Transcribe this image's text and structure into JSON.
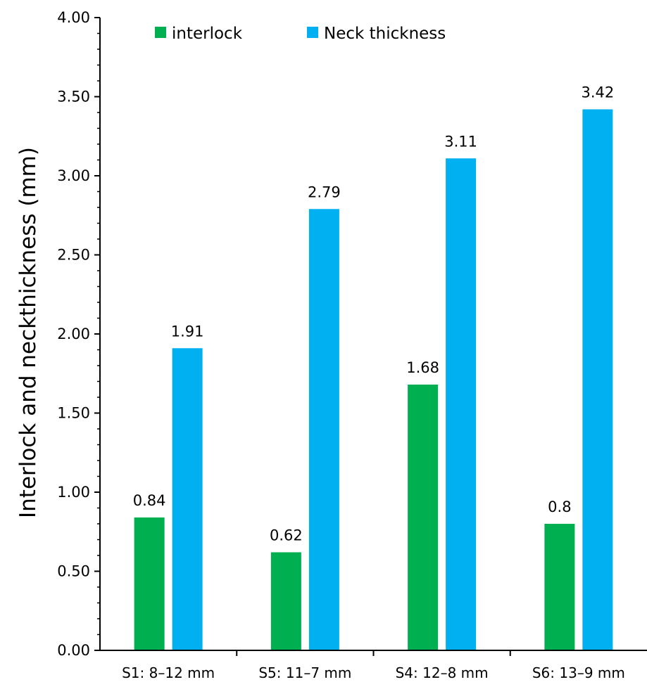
{
  "chart_data": {
    "type": "bar",
    "title": "",
    "xlabel": "",
    "ylabel": "Interlock and neckthickness (mm)",
    "ylim": [
      0,
      4
    ],
    "ytick_step": 0.5,
    "ytick_labels": [
      "0.00",
      "0.50",
      "1.00",
      "1.50",
      "2.00",
      "2.50",
      "3.00",
      "3.50",
      "4.00"
    ],
    "grid": false,
    "legend": "top-left",
    "categories": [
      "S1: 8–12 mm",
      "S5: 11–7 mm",
      "S4: 12–8 mm",
      "S6: 13–9 mm"
    ],
    "series": [
      {
        "name": "interlock",
        "color": "#00b050",
        "values": [
          0.84,
          0.62,
          1.68,
          0.8
        ],
        "value_labels": [
          "0.84",
          "0.62",
          "1.68",
          "0.8"
        ]
      },
      {
        "name": "Neck thickness",
        "color": "#00b0f0",
        "values": [
          1.91,
          2.79,
          3.11,
          3.42
        ],
        "value_labels": [
          "1.91",
          "2.79",
          "3.11",
          "3.42"
        ]
      }
    ]
  }
}
